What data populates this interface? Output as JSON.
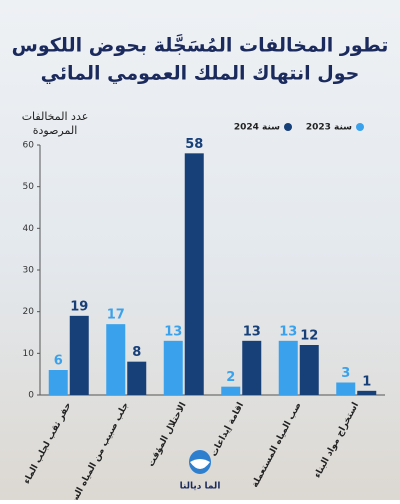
{
  "chart_data": {
    "type": "bar",
    "title": [
      "تطور المخالفات المُسَجَّلة بحوض اللكوس",
      "حول انتهاك الملك العمومي المائي"
    ],
    "y_label": [
      "عدد المخالفات",
      "المرصودة"
    ],
    "categories": [
      "حفر ثقب لجلب الماء",
      "جلب صبيب من المياه السطحية",
      "الاحتلال المؤقت",
      "اقامة إيداعات",
      "صب المياه المستعملة",
      "استخراج مواد البناء"
    ],
    "series": [
      {
        "name": "سنة 2023",
        "color": "#3aa2ec",
        "values": [
          6,
          17,
          13,
          2,
          13,
          3
        ]
      },
      {
        "name": "سنة 2024",
        "color": "#173f78",
        "values": [
          19,
          8,
          58,
          13,
          12,
          1
        ]
      }
    ],
    "ylim": [
      0,
      60
    ],
    "yticks": [
      0,
      10,
      20,
      30,
      40,
      50,
      60
    ],
    "logo": "الما ديالنا"
  }
}
